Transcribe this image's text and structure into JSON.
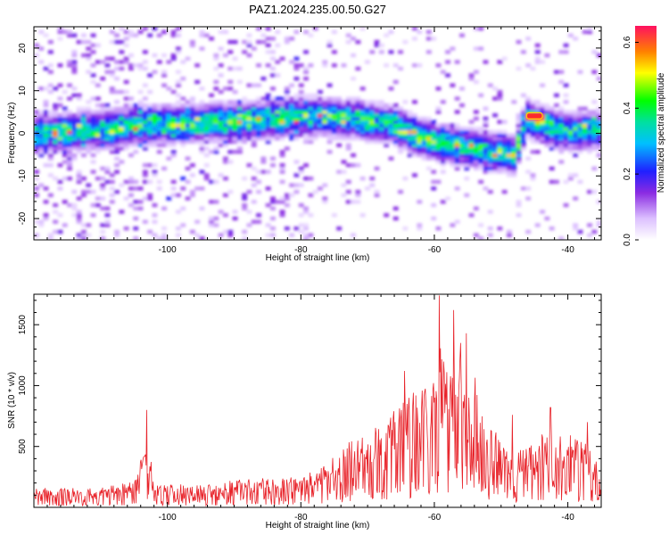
{
  "title": "PAZ1.2024.235.00.50.G27",
  "chart_data": [
    {
      "type": "heatmap",
      "xlabel": "Height of straight line (km)",
      "ylabel": "Frequency (Hz)",
      "xlim": [
        -120,
        -35
      ],
      "ylim": [
        -25,
        25
      ],
      "xticks": [
        -100,
        -80,
        -60,
        -40
      ],
      "yticks": [
        -20,
        -10,
        0,
        10,
        20
      ],
      "colorbar": {
        "label": "Normalized spectral amplitude",
        "range": [
          0,
          0.65
        ],
        "ticks": [
          0,
          0.2,
          0.4,
          0.6
        ],
        "colormap": "rainbow-white"
      },
      "ridge": [
        {
          "x": -119,
          "y": 0
        },
        {
          "x": -110,
          "y": 1
        },
        {
          "x": -104,
          "y": 2
        },
        {
          "x": -96,
          "y": 2.5
        },
        {
          "x": -88,
          "y": 3
        },
        {
          "x": -80,
          "y": 4
        },
        {
          "x": -72,
          "y": 3.5
        },
        {
          "x": -66,
          "y": 2
        },
        {
          "x": -62,
          "y": -1
        },
        {
          "x": -58,
          "y": -2.5
        },
        {
          "x": -52,
          "y": -4
        },
        {
          "x": -48,
          "y": -5
        },
        {
          "x": -46,
          "y": 3.5
        },
        {
          "x": -42,
          "y": 1
        },
        {
          "x": -38,
          "y": 0.5
        },
        {
          "x": -35,
          "y": 1
        }
      ],
      "peak": {
        "x": -45,
        "y": 4,
        "value": 0.64
      }
    },
    {
      "type": "line",
      "xlabel": "Height of straight line (km)",
      "ylabel": "SNR (10 * v/v)",
      "xlim": [
        -120,
        -35
      ],
      "ylim": [
        0,
        1750
      ],
      "xticks": [
        -100,
        -80,
        -60,
        -40
      ],
      "yticks": [
        500,
        1000,
        1500
      ],
      "series_color": "#e8232a",
      "envelope": [
        {
          "x": -120,
          "y": 160
        },
        {
          "x": -110,
          "y": 160
        },
        {
          "x": -105,
          "y": 230
        },
        {
          "x": -103,
          "y": 650
        },
        {
          "x": -102,
          "y": 200
        },
        {
          "x": -95,
          "y": 180
        },
        {
          "x": -88,
          "y": 240
        },
        {
          "x": -82,
          "y": 240
        },
        {
          "x": -78,
          "y": 300
        },
        {
          "x": -74,
          "y": 520
        },
        {
          "x": -70,
          "y": 600
        },
        {
          "x": -66,
          "y": 800
        },
        {
          "x": -62,
          "y": 1050
        },
        {
          "x": -60,
          "y": 1250
        },
        {
          "x": -58,
          "y": 1450
        },
        {
          "x": -55,
          "y": 1300
        },
        {
          "x": -52,
          "y": 700
        },
        {
          "x": -48,
          "y": 450
        },
        {
          "x": -45,
          "y": 550
        },
        {
          "x": -42,
          "y": 700
        },
        {
          "x": -38,
          "y": 550
        },
        {
          "x": -35,
          "y": 450
        }
      ],
      "spikes": [
        {
          "x": -103.1,
          "y": 800
        },
        {
          "x": -59.3,
          "y": 1740
        },
        {
          "x": -57.1,
          "y": 1620
        },
        {
          "x": -55.2,
          "y": 1430
        },
        {
          "x": -42.6,
          "y": 820
        },
        {
          "x": -48.3,
          "y": 760
        },
        {
          "x": -37.1,
          "y": 700
        },
        {
          "x": -64.5,
          "y": 1120
        }
      ]
    }
  ]
}
